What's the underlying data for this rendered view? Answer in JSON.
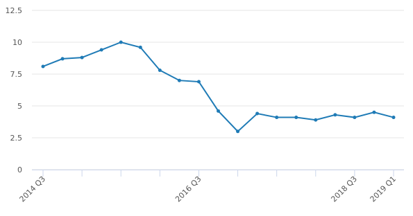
{
  "chart_data": {
    "type": "line",
    "categories": [
      "2014 Q3",
      null,
      null,
      null,
      null,
      null,
      null,
      null,
      "2016 Q3",
      null,
      null,
      null,
      null,
      null,
      null,
      null,
      "2018 Q3",
      null,
      "2019 Q1"
    ],
    "series": [
      {
        "name": null,
        "color": "#1f7bb6",
        "values": [
          8.1,
          8.7,
          8.8,
          9.4,
          10.0,
          9.6,
          7.8,
          7.0,
          6.9,
          4.6,
          3.0,
          4.4,
          4.1,
          4.1,
          3.9,
          4.3,
          4.1,
          4.5,
          4.1
        ]
      }
    ],
    "ylim": [
      0,
      12.5
    ],
    "yticks": [
      0,
      2.5,
      5,
      7.5,
      10,
      12.5
    ],
    "grid": true
  }
}
